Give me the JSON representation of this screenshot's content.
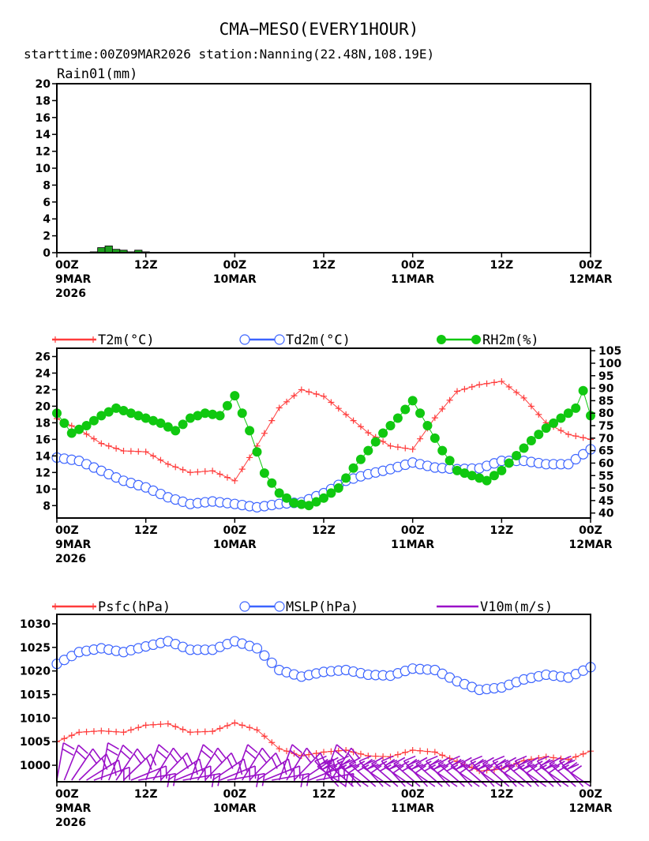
{
  "header": {
    "title": "CMA−MESO(EVERY1HOUR)",
    "subtitle": "starttime:00Z09MAR2026   station:Nanning(22.48N,108.19E)"
  },
  "colors": {
    "temp": "#ff3c3c",
    "dew": "#3c64ff",
    "rh": "#10c810",
    "rain": "#1ea01e",
    "wind": "#9a10c8",
    "axis": "#000000"
  },
  "x_axis": {
    "hours_range": [
      0,
      72
    ],
    "ticks": [
      {
        "hour": 0,
        "lines": [
          "00Z",
          "9MAR",
          "2026"
        ]
      },
      {
        "hour": 12,
        "lines": [
          "12Z"
        ]
      },
      {
        "hour": 24,
        "lines": [
          "00Z",
          "10MAR"
        ]
      },
      {
        "hour": 36,
        "lines": [
          "12Z"
        ]
      },
      {
        "hour": 48,
        "lines": [
          "00Z",
          "11MAR"
        ]
      },
      {
        "hour": 60,
        "lines": [
          "12Z"
        ]
      },
      {
        "hour": 72,
        "lines": [
          "00Z",
          "12MAR"
        ]
      }
    ]
  },
  "chart_data": [
    {
      "type": "bar",
      "name": "rain",
      "title": "Rain01(mm)",
      "ylim": [
        0,
        20
      ],
      "yticks": [
        0,
        2,
        4,
        6,
        8,
        10,
        12,
        14,
        16,
        18,
        20
      ],
      "bars": [
        {
          "hour": 5,
          "value": 0.1
        },
        {
          "hour": 6,
          "value": 0.6
        },
        {
          "hour": 7,
          "value": 0.8
        },
        {
          "hour": 8,
          "value": 0.4
        },
        {
          "hour": 9,
          "value": 0.3
        },
        {
          "hour": 10,
          "value": 0.1
        },
        {
          "hour": 11,
          "value": 0.3
        },
        {
          "hour": 12,
          "value": 0.1
        }
      ]
    },
    {
      "type": "line",
      "name": "temperature",
      "ylim": [
        6.5,
        27
      ],
      "yticks": [
        8,
        10,
        12,
        14,
        16,
        18,
        20,
        22,
        24,
        26
      ],
      "ylim_right": [
        38,
        106
      ],
      "yticks_right": [
        40,
        45,
        50,
        55,
        60,
        65,
        70,
        75,
        80,
        85,
        90,
        95,
        100,
        105
      ],
      "series": [
        {
          "name": "T2m(°C)",
          "marker": "plus",
          "axis": "left",
          "x": [
            0,
            3,
            6,
            9,
            12,
            15,
            18,
            21,
            24,
            27,
            30,
            33,
            36,
            39,
            42,
            45,
            48,
            51,
            54,
            57,
            60,
            63,
            66,
            69,
            72
          ],
          "values": [
            18.5,
            17.2,
            15.5,
            14.6,
            14.5,
            13.0,
            12.0,
            12.2,
            11.0,
            15.2,
            19.8,
            22.0,
            21.2,
            19.0,
            16.8,
            15.2,
            14.8,
            18.6,
            21.8,
            22.6,
            23.0,
            21.0,
            18.0,
            16.6,
            16.0
          ]
        },
        {
          "name": "Td2m(°C)",
          "marker": "circle",
          "axis": "left",
          "x": [
            0,
            3,
            6,
            9,
            12,
            15,
            18,
            21,
            24,
            27,
            30,
            33,
            36,
            39,
            42,
            45,
            48,
            51,
            54,
            57,
            60,
            63,
            66,
            69,
            72
          ],
          "values": [
            13.8,
            13.4,
            12.2,
            11.0,
            10.2,
            9.0,
            8.2,
            8.5,
            8.2,
            7.8,
            8.2,
            8.4,
            9.5,
            11.0,
            11.8,
            12.4,
            13.2,
            12.6,
            12.4,
            12.5,
            13.4,
            13.4,
            13.0,
            13.0,
            14.8
          ]
        },
        {
          "name": "RH2m(%)",
          "marker": "dot",
          "axis": "right",
          "x": [
            0,
            2,
            4,
            6,
            8,
            10,
            12,
            14,
            16,
            18,
            20,
            22,
            24,
            26,
            28,
            30,
            32,
            34,
            36,
            38,
            40,
            42,
            44,
            46,
            48,
            50,
            52,
            54,
            56,
            58,
            60,
            62,
            64,
            66,
            68,
            70,
            71,
            72
          ],
          "values": [
            80,
            72,
            75,
            79,
            82,
            80,
            78,
            76,
            73,
            78,
            80,
            79,
            87,
            73,
            56,
            48,
            44,
            43,
            46,
            50,
            58,
            65,
            72,
            78,
            85,
            75,
            65,
            57,
            55,
            53,
            57,
            63,
            69,
            74,
            78,
            82,
            89,
            79
          ]
        }
      ]
    },
    {
      "type": "line",
      "name": "pressure",
      "ylim": [
        996.5,
        1032
      ],
      "yticks": [
        1000,
        1005,
        1010,
        1015,
        1020,
        1025,
        1030
      ],
      "series": [
        {
          "name": "Psfc(hPa)",
          "marker": "plus",
          "x": [
            0,
            3,
            6,
            9,
            12,
            15,
            18,
            21,
            24,
            27,
            30,
            33,
            36,
            39,
            42,
            45,
            48,
            51,
            54,
            57,
            60,
            63,
            66,
            69,
            72
          ],
          "values": [
            1005.0,
            1007.0,
            1007.3,
            1007.0,
            1008.5,
            1008.8,
            1007.0,
            1007.2,
            1009.0,
            1007.5,
            1003.5,
            1002.0,
            1002.8,
            1003.2,
            1002.0,
            1001.8,
            1003.2,
            1002.8,
            1000.8,
            998.8,
            999.2,
            1001.0,
            1001.8,
            1001.2,
            1003.0
          ]
        },
        {
          "name": "MSLP(hPa)",
          "marker": "circle",
          "x": [
            0,
            3,
            6,
            9,
            12,
            15,
            18,
            21,
            24,
            27,
            30,
            33,
            36,
            39,
            42,
            45,
            48,
            51,
            54,
            57,
            60,
            63,
            66,
            69,
            72
          ],
          "values": [
            1021.5,
            1024.0,
            1024.8,
            1024.0,
            1025.2,
            1026.3,
            1024.5,
            1024.5,
            1026.3,
            1024.8,
            1020.2,
            1018.8,
            1019.8,
            1020.2,
            1019.2,
            1019.0,
            1020.5,
            1020.2,
            1017.8,
            1016.0,
            1016.5,
            1018.2,
            1019.2,
            1018.6,
            1020.8
          ]
        },
        {
          "name": "V10m(m/s)",
          "marker": "barb",
          "label_only": true
        }
      ]
    }
  ]
}
